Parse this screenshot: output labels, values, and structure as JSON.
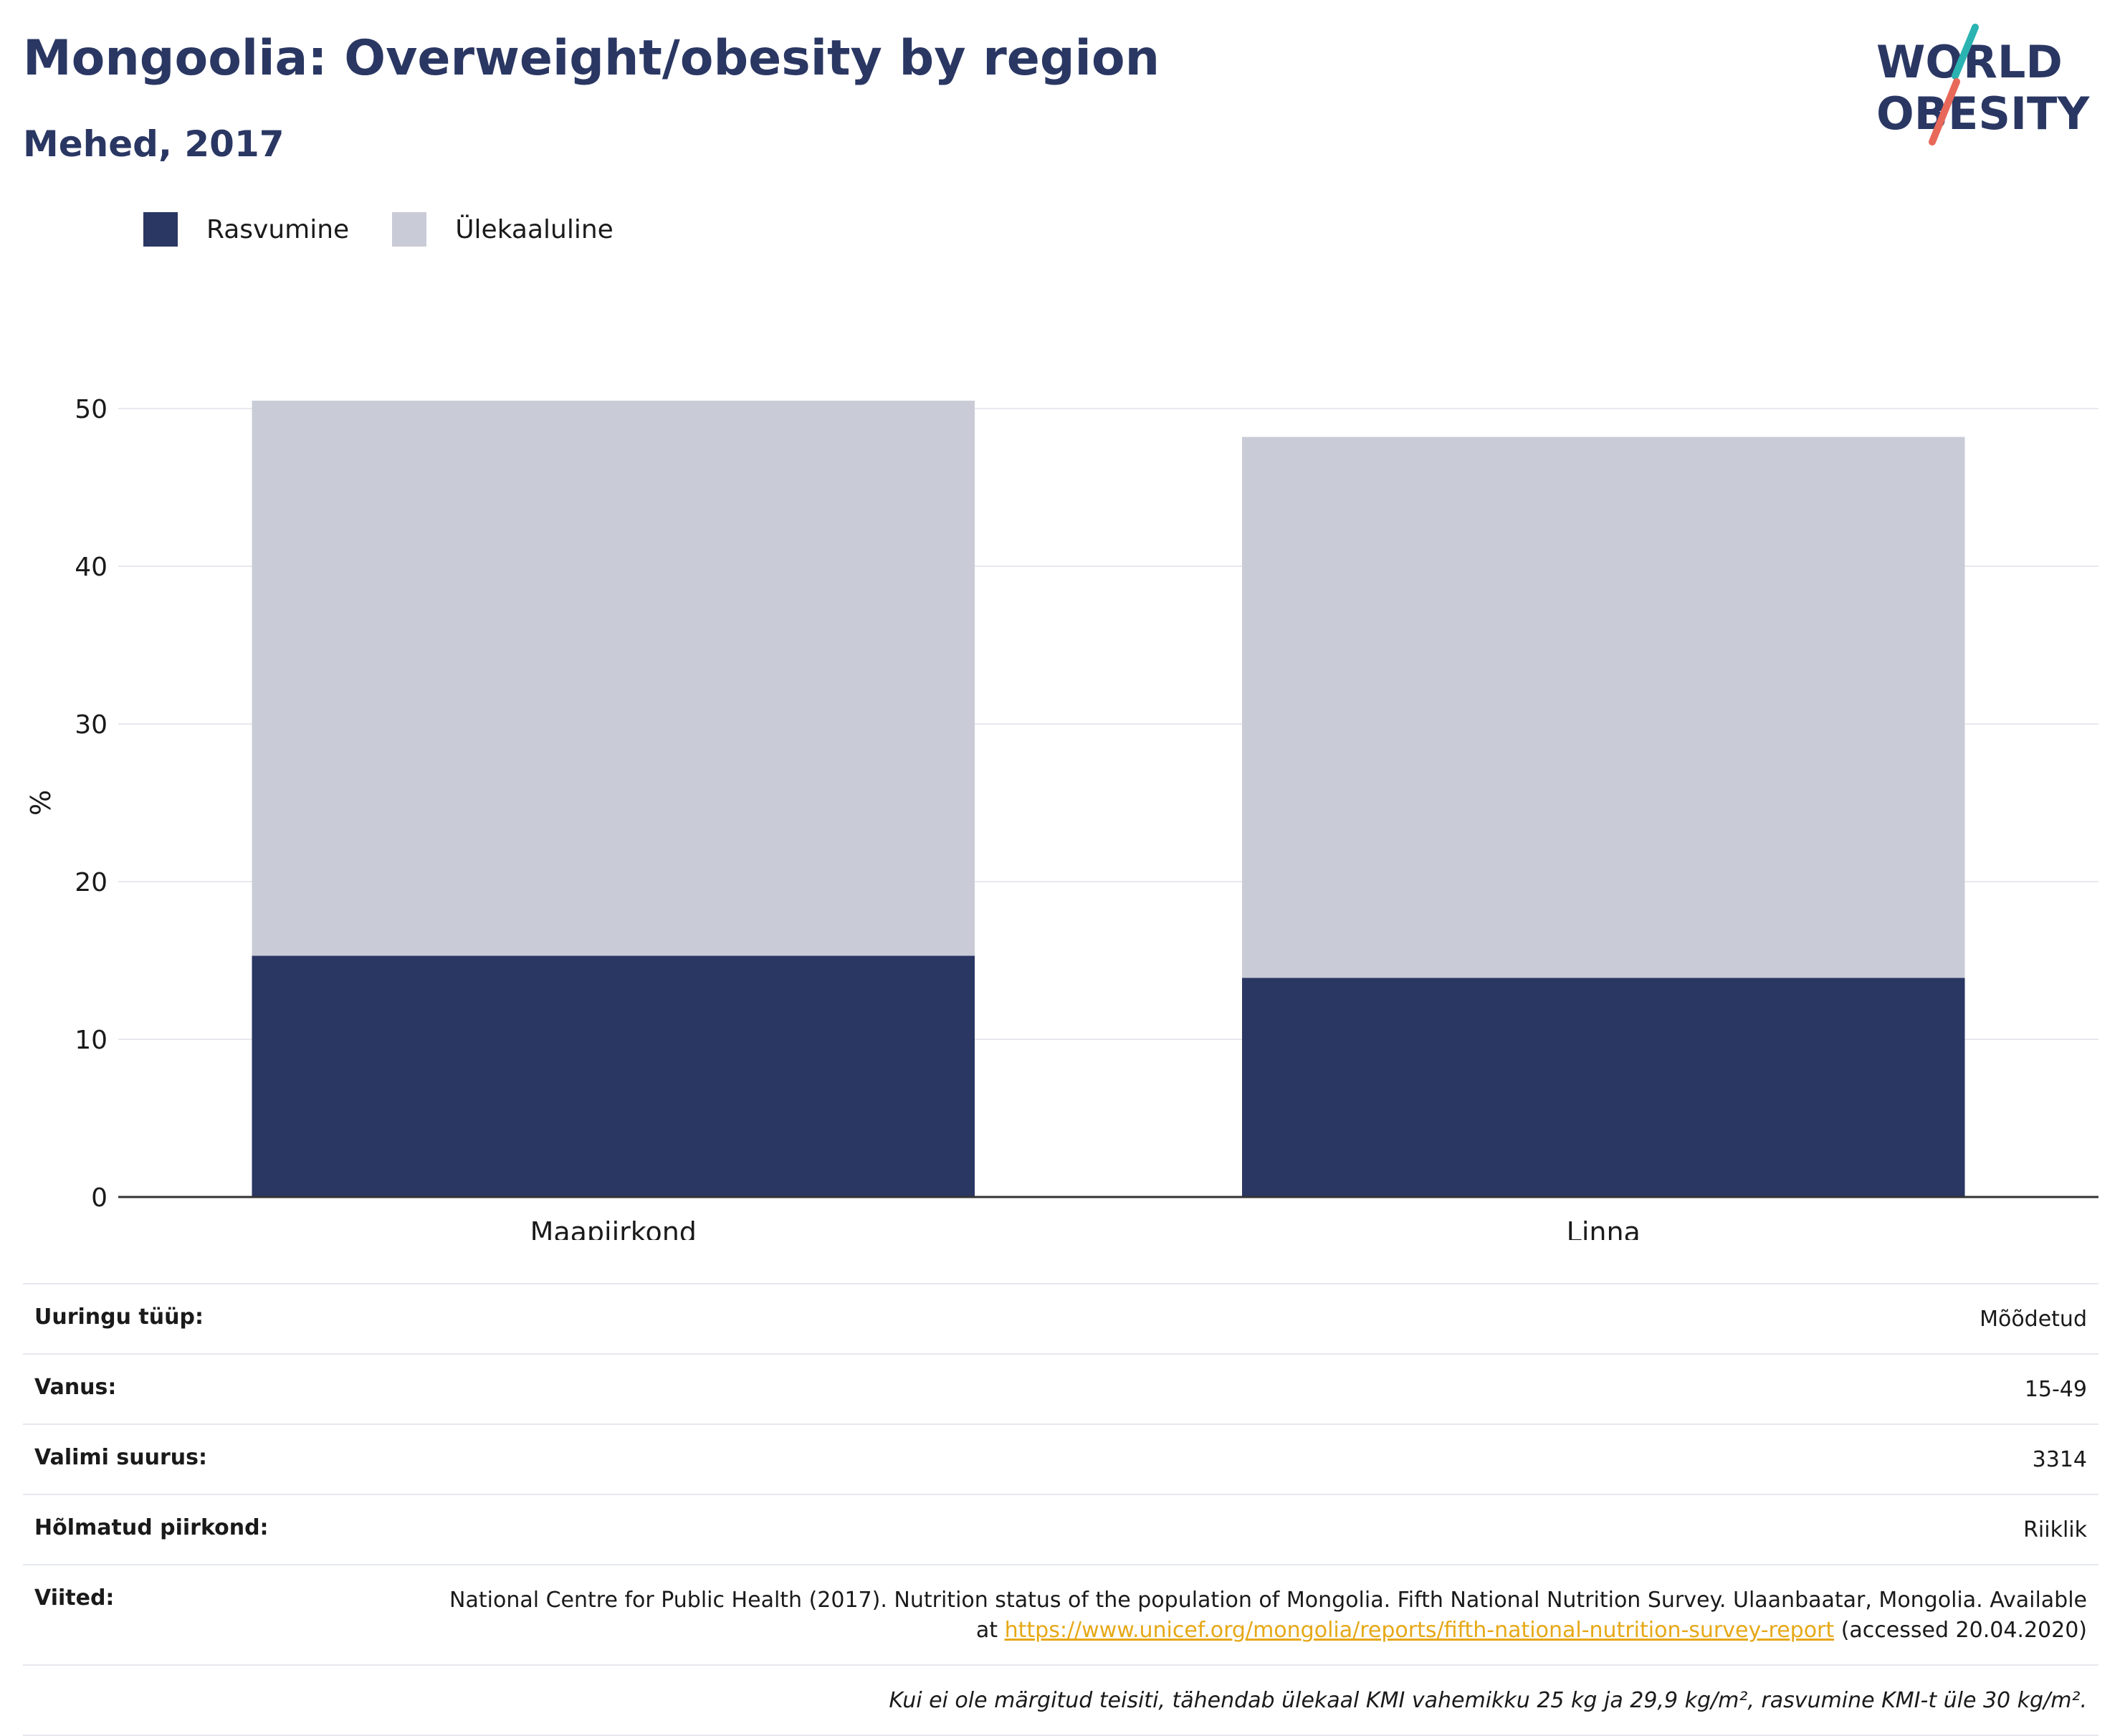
{
  "title": "Mongoolia: Overweight/obesity by region",
  "subtitle": "Mehed, 2017",
  "logo": {
    "line1": "WORLD",
    "line2": "OBESITY",
    "accent_teal": "#2ab3b1",
    "accent_red": "#e8685a",
    "text_color": "#2a3763"
  },
  "legend": [
    {
      "label": "Rasvumine",
      "color": "#2a3763"
    },
    {
      "label": "Ülekaaluline",
      "color": "#c9ccd7"
    }
  ],
  "chart_data": {
    "type": "bar",
    "stacked": true,
    "categories": [
      "Maapiirkond",
      "Linna"
    ],
    "series": [
      {
        "name": "Rasvumine",
        "values": [
          15.3,
          13.9
        ],
        "color": "#2a3763"
      },
      {
        "name": "Ülekaaluline",
        "values": [
          35.2,
          34.3
        ],
        "color": "#c9ccd7"
      }
    ],
    "ylabel": "%",
    "ylim": [
      0,
      50
    ],
    "yticks": [
      0,
      10,
      20,
      30,
      40,
      50
    ],
    "grid": true
  },
  "meta": {
    "survey_type": {
      "label": "Uuringu tüüp:",
      "value": "Mõõdetud"
    },
    "age": {
      "label": "Vanus:",
      "value": "15-49"
    },
    "sample_size": {
      "label": "Valimi suurus:",
      "value": "3314"
    },
    "region": {
      "label": "Hõlmatud piirkond:",
      "value": "Riiklik"
    },
    "references": {
      "label": "Viited:",
      "text_before": "National Centre for Public Health (2017). Nutrition status of the population of Mongolia. Fifth National Nutrition Survey. Ulaanbaatar, Mongolia. Available at ",
      "link": "https://www.unicef.org/mongolia/reports/fifth-national-nutrition-survey-report",
      "text_after": " (accessed 20.04.2020)"
    },
    "note": "Kui ei ole märgitud teisiti, tähendab ülekaal KMI vahemikku 25 kg ja 29,9 kg/m², rasvumine KMI-t üle 30 kg/m²."
  }
}
